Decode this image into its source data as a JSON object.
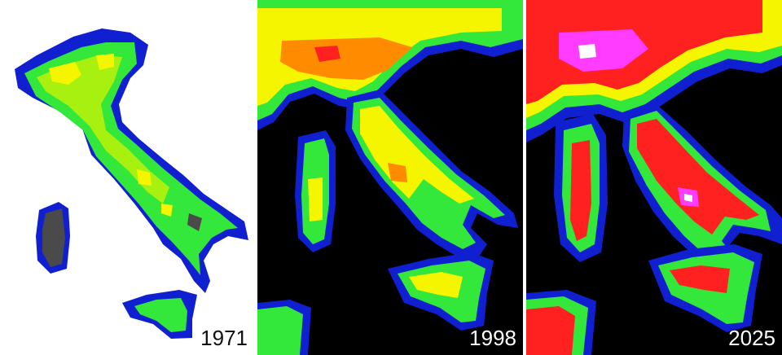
{
  "panels": [
    {
      "year": "1971"
    },
    {
      "year": "1998"
    },
    {
      "year": "2025"
    }
  ],
  "colors": {
    "background_1971": "#ffffff",
    "background_night": "#000000",
    "level_gray": "#4a4a4a",
    "level_blue": "#1020d0",
    "level_green": "#33e83a",
    "level_lime": "#a8f010",
    "level_yellow": "#f5f500",
    "level_orange": "#ff8c00",
    "level_red": "#ff2020",
    "level_magenta": "#ff3cff",
    "level_white": "#ffffff"
  }
}
